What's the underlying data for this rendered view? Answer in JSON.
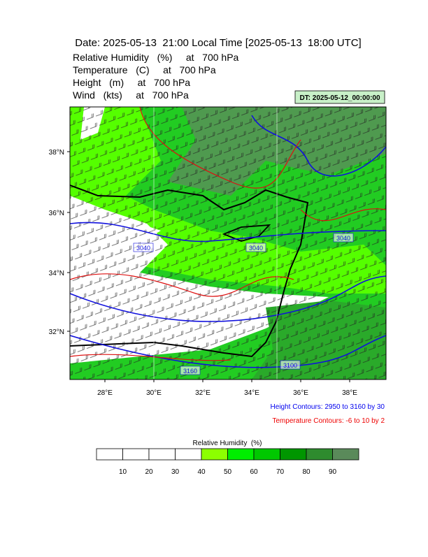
{
  "header": {
    "title": "Date: 2025-05-13  21:00 Local Time [2025-05-13  18:00 UTC]",
    "fields": [
      "Relative Humidity   (%)     at   700 hPa",
      "Temperature   (C)     at   700 hPa",
      "Height   (m)     at   700 hPa",
      "Wind   (kts)     at   700 hPa"
    ],
    "dt_label": "DT: 2025-05-12_00:00:00"
  },
  "map": {
    "lat_labels": [
      "38°N",
      "36°N",
      "34°N",
      "32°N"
    ],
    "lon_labels": [
      "28°E",
      "30°E",
      "32°E",
      "34°E",
      "36°E",
      "38°E"
    ],
    "contour_labels": [
      "3040",
      "3040",
      "3040",
      "3160",
      "3100"
    ]
  },
  "legend": {
    "height_contours": "Height Contours: 2950 to 3160 by 30",
    "temperature_contours": "Temperature Contours: -6 to 10 by 2"
  },
  "colorbar": {
    "title": "Relative Humidity  (%)",
    "labels": [
      "10",
      "20",
      "30",
      "40",
      "50",
      "60",
      "70",
      "80",
      "90"
    ]
  }
}
